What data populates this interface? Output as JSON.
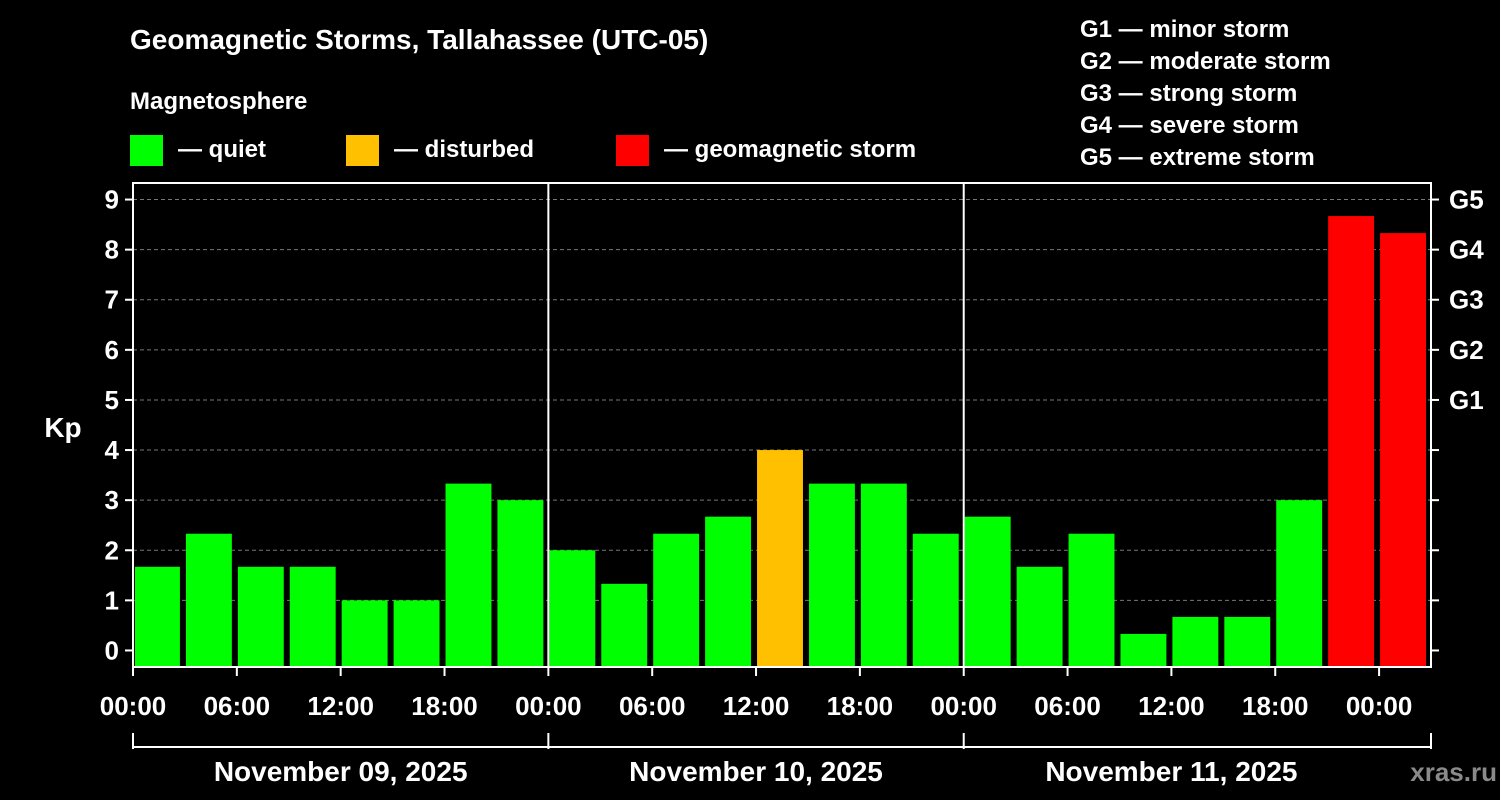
{
  "title": "Geomagnetic Storms, Tallahassee (UTC-05)",
  "legend": {
    "heading": "Magnetosphere",
    "items": [
      {
        "label": "— quiet",
        "color": "#00ff00"
      },
      {
        "label": "— disturbed",
        "color": "#ffc000"
      },
      {
        "label": "— geomagnetic storm",
        "color": "#ff0000"
      }
    ]
  },
  "storm_scale": [
    "G1 — minor storm",
    "G2 — moderate storm",
    "G3 — strong storm",
    "G4 — severe storm",
    "G5 — extreme storm"
  ],
  "watermark": "xras.ru",
  "chart_data": {
    "type": "bar",
    "ylabel": "Kp",
    "ylim": [
      -0.33,
      9.33
    ],
    "y_ticks": [
      "0",
      "1",
      "2",
      "3",
      "4",
      "5",
      "6",
      "7",
      "8",
      "9"
    ],
    "right_ticks": [
      {
        "kp": 5,
        "label": "G1"
      },
      {
        "kp": 6,
        "label": "G2"
      },
      {
        "kp": 7,
        "label": "G3"
      },
      {
        "kp": 8,
        "label": "G4"
      },
      {
        "kp": 9,
        "label": "G5"
      }
    ],
    "x_ticks": [
      "00:00",
      "06:00",
      "12:00",
      "18:00",
      "00:00",
      "06:00",
      "12:00",
      "18:00",
      "00:00",
      "06:00",
      "12:00",
      "18:00",
      "00:00"
    ],
    "days": [
      "November 09, 2025",
      "November 10, 2025",
      "November 11, 2025"
    ],
    "bars": [
      {
        "start_hour": 0,
        "kp": 1.67,
        "level": "quiet"
      },
      {
        "start_hour": 3,
        "kp": 2.33,
        "level": "quiet"
      },
      {
        "start_hour": 6,
        "kp": 1.67,
        "level": "quiet"
      },
      {
        "start_hour": 9,
        "kp": 1.67,
        "level": "quiet"
      },
      {
        "start_hour": 12,
        "kp": 1.0,
        "level": "quiet"
      },
      {
        "start_hour": 15,
        "kp": 1.0,
        "level": "quiet"
      },
      {
        "start_hour": 18,
        "kp": 3.33,
        "level": "quiet"
      },
      {
        "start_hour": 21,
        "kp": 3.0,
        "level": "quiet"
      },
      {
        "start_hour": 24,
        "kp": 2.0,
        "level": "quiet"
      },
      {
        "start_hour": 27,
        "kp": 1.33,
        "level": "quiet"
      },
      {
        "start_hour": 30,
        "kp": 2.33,
        "level": "quiet"
      },
      {
        "start_hour": 33,
        "kp": 2.67,
        "level": "quiet"
      },
      {
        "start_hour": 36,
        "kp": 4.0,
        "level": "disturbed"
      },
      {
        "start_hour": 39,
        "kp": 3.33,
        "level": "quiet"
      },
      {
        "start_hour": 42,
        "kp": 3.33,
        "level": "quiet"
      },
      {
        "start_hour": 45,
        "kp": 2.33,
        "level": "quiet"
      },
      {
        "start_hour": 48,
        "kp": 2.67,
        "level": "quiet"
      },
      {
        "start_hour": 51,
        "kp": 1.67,
        "level": "quiet"
      },
      {
        "start_hour": 54,
        "kp": 2.33,
        "level": "quiet"
      },
      {
        "start_hour": 57,
        "kp": 0.33,
        "level": "quiet"
      },
      {
        "start_hour": 60,
        "kp": 0.67,
        "level": "quiet"
      },
      {
        "start_hour": 63,
        "kp": 0.67,
        "level": "quiet"
      },
      {
        "start_hour": 66,
        "kp": 3.0,
        "level": "quiet"
      },
      {
        "start_hour": 69,
        "kp": 8.67,
        "level": "storm"
      },
      {
        "start_hour": 72,
        "kp": 8.33,
        "level": "storm"
      }
    ],
    "colors": {
      "quiet": "#00ff00",
      "disturbed": "#ffc000",
      "storm": "#ff0000"
    },
    "grid": true
  }
}
